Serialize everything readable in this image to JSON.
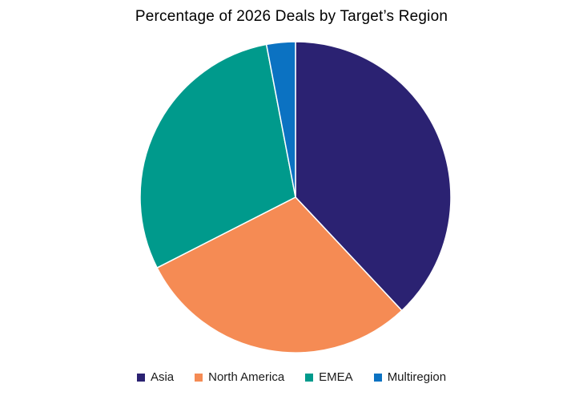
{
  "chart_data": {
    "type": "pie",
    "title": "Percentage of 2026 Deals by Target’s Region",
    "legend_position": "bottom",
    "categories": [
      "Asia",
      "North America",
      "EMEA",
      "Multiregion"
    ],
    "values": [
      38,
      29.5,
      29.5,
      3
    ],
    "colors": [
      "#2b2272",
      "#f58b54",
      "#009a8c",
      "#0b72c2"
    ]
  }
}
